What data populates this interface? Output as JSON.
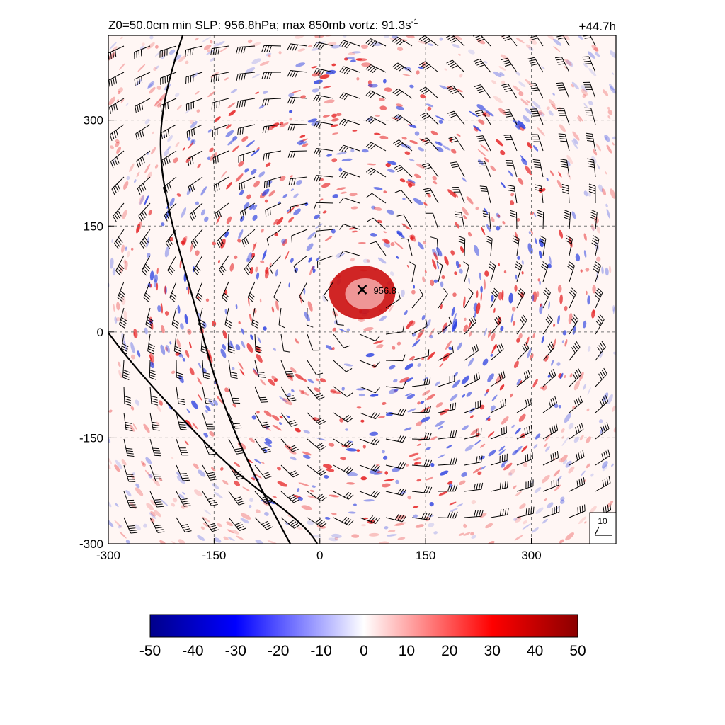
{
  "chart_data": {
    "type": "heatmap",
    "title": "Z0=50.0cm  min SLP: 956.8hPa; max 850mb vortz:  91.3s",
    "title_superscript": "-1",
    "time_label": "+44.7h",
    "xlim": [
      -300,
      420
    ],
    "ylim": [
      -300,
      420
    ],
    "x_ticks": [
      -300,
      -150,
      0,
      150,
      300
    ],
    "y_ticks": [
      -300,
      -150,
      0,
      150,
      300
    ],
    "grid": "dashed",
    "min_slp": 956.8,
    "min_slp_label": "956.8",
    "center": {
      "x": 60,
      "y": 60
    },
    "colorbar": {
      "ticks": [
        -50,
        -40,
        -30,
        -20,
        -10,
        0,
        10,
        20,
        30,
        40,
        50
      ],
      "range": [
        -50,
        50
      ],
      "colors": [
        "#00008b",
        "#0000ff",
        "#ffffff",
        "#ff0000",
        "#8b0000"
      ]
    },
    "wind_barb_reference": {
      "label": "10"
    },
    "colors": {
      "positive": "#e41a1c",
      "negative": "#2a3fe0",
      "core": "#c80000"
    }
  }
}
